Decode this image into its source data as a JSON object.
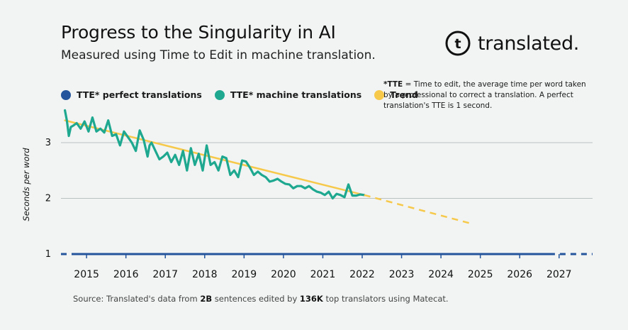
{
  "title": "Progress to the Singularity in AI",
  "subtitle": "Measured using Time to Edit in machine translation.",
  "brand": {
    "name": "translated.",
    "logo_glyph": "t"
  },
  "note": {
    "term": "*TTE",
    "text": " = Time to edit, the average time per word taken by a professional to correct a translation. A perfect translation's TTE is 1 second."
  },
  "source": {
    "prefix": "Source: Translated's data from ",
    "highlight1": "2B",
    "middle": " sentences edited by ",
    "highlight2": "136K",
    "suffix": " top translators using Matecat."
  },
  "colors": {
    "perfect": "#24559c",
    "machine": "#1ea890",
    "trend": "#f6c94b",
    "grid": "#b9c1c1",
    "background": "#f2f4f4"
  },
  "chart_data": {
    "type": "line",
    "ylabel": "Seconds per word",
    "xlabel": "",
    "ylim": [
      1,
      3.7
    ],
    "yticks": [
      1,
      2,
      3
    ],
    "xlim": [
      2014.6,
      2028.1
    ],
    "xticks": [
      "2015",
      "2016",
      "2017",
      "2018",
      "2019",
      "2020",
      "2021",
      "2022",
      "2023",
      "2024",
      "2025",
      "2026",
      "2027"
    ],
    "legend_position": "top-left",
    "series": [
      {
        "name": "TTE* perfect translations",
        "style": "solid",
        "x": [
          2014.96,
          2027.0
        ],
        "y": [
          1,
          1
        ]
      },
      {
        "name": "",
        "style": "dashed",
        "x": [
          2014.6,
          2014.96
        ],
        "y": [
          1,
          1
        ]
      },
      {
        "name": "",
        "style": "dashed",
        "x": [
          2027.0,
          2028.1
        ],
        "y": [
          1,
          1
        ]
      },
      {
        "name": "TTE* machine translations",
        "style": "solid",
        "x": [
          2014.7,
          2014.75,
          2014.8,
          2014.85,
          2014.9,
          2015.0,
          2015.1,
          2015.2,
          2015.3,
          2015.4,
          2015.5,
          2015.6,
          2015.7,
          2015.8,
          2015.9,
          2016.0,
          2016.1,
          2016.2,
          2016.3,
          2016.4,
          2016.5,
          2016.6,
          2016.7,
          2016.8,
          2016.85,
          2016.9,
          2017.0,
          2017.1,
          2017.2,
          2017.3,
          2017.4,
          2017.5,
          2017.6,
          2017.7,
          2017.8,
          2017.9,
          2018.0,
          2018.1,
          2018.2,
          2018.3,
          2018.4,
          2018.5,
          2018.6,
          2018.7,
          2018.8,
          2018.9,
          2019.0,
          2019.1,
          2019.2,
          2019.3,
          2019.4,
          2019.5,
          2019.6,
          2019.7,
          2019.8,
          2019.9,
          2020.0,
          2020.1,
          2020.2,
          2020.3,
          2020.4,
          2020.5,
          2020.6,
          2020.7,
          2020.8,
          2020.9,
          2021.0,
          2021.1,
          2021.2,
          2021.3,
          2021.4,
          2021.5,
          2021.6,
          2021.7,
          2021.8,
          2021.9,
          2022.0,
          2022.1,
          2022.2,
          2022.3
        ],
        "y": [
          3.58,
          3.4,
          3.12,
          3.28,
          3.3,
          3.35,
          3.25,
          3.38,
          3.2,
          3.45,
          3.2,
          3.25,
          3.18,
          3.4,
          3.12,
          3.15,
          2.95,
          3.2,
          3.1,
          3.0,
          2.85,
          3.22,
          3.05,
          2.75,
          2.95,
          3.0,
          2.85,
          2.7,
          2.75,
          2.82,
          2.65,
          2.78,
          2.6,
          2.85,
          2.5,
          2.9,
          2.6,
          2.8,
          2.5,
          2.95,
          2.6,
          2.65,
          2.5,
          2.75,
          2.72,
          2.42,
          2.5,
          2.38,
          2.68,
          2.66,
          2.55,
          2.42,
          2.48,
          2.42,
          2.38,
          2.3,
          2.32,
          2.35,
          2.3,
          2.26,
          2.25,
          2.18,
          2.22,
          2.22,
          2.18,
          2.22,
          2.16,
          2.12,
          2.1,
          2.06,
          2.12,
          2.0,
          2.08,
          2.06,
          2.02,
          2.25,
          2.05,
          2.05,
          2.07,
          2.06
        ]
      },
      {
        "name": "Trend",
        "style": "solid",
        "x": [
          2014.7,
          2022.3
        ],
        "y": [
          3.4,
          2.06
        ]
      },
      {
        "name": "",
        "style": "dashed",
        "x": [
          2022.3,
          2025.0
        ],
        "y": [
          2.06,
          1.55
        ]
      }
    ]
  }
}
